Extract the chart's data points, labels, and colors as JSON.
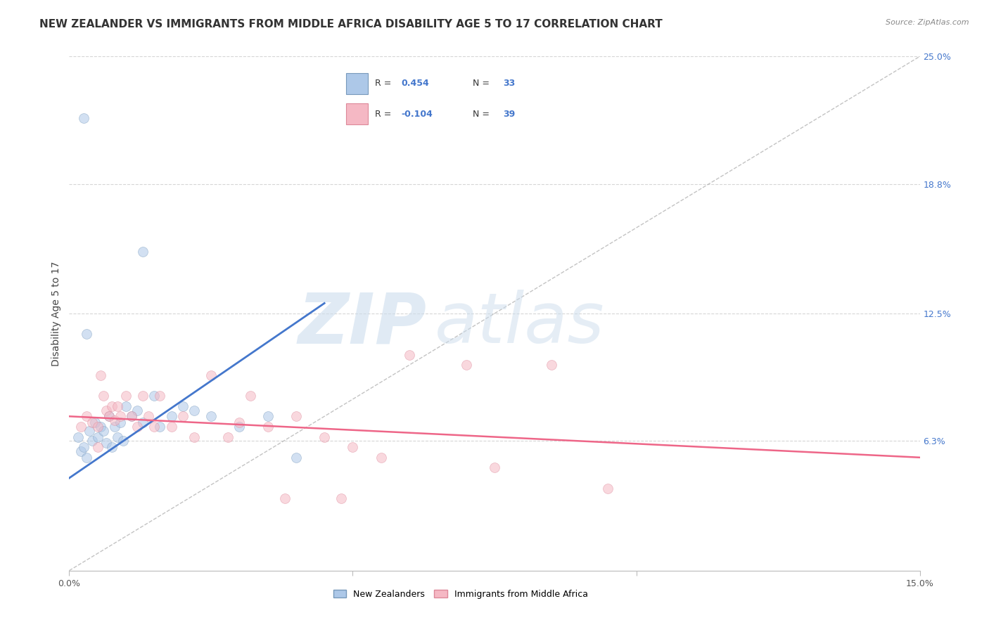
{
  "title": "NEW ZEALANDER VS IMMIGRANTS FROM MIDDLE AFRICA DISABILITY AGE 5 TO 17 CORRELATION CHART",
  "source": "Source: ZipAtlas.com",
  "ylabel": "Disability Age 5 to 17",
  "x_min": 0.0,
  "x_max": 15.0,
  "y_min": 0.0,
  "y_max": 25.0,
  "x_ticks": [
    0.0,
    5.0,
    10.0,
    15.0
  ],
  "x_tick_labels": [
    "0.0%",
    "",
    "",
    "15.0%"
  ],
  "y_ticks_right": [
    6.3,
    12.5,
    18.8,
    25.0
  ],
  "y_tick_labels_right": [
    "6.3%",
    "12.5%",
    "18.8%",
    "25.0%"
  ],
  "bottom_legend": [
    {
      "label": "New Zealanders",
      "color": "#adc8e8"
    },
    {
      "label": "Immigrants from Middle Africa",
      "color": "#f5b8c4"
    }
  ],
  "blue_scatter_x": [
    0.15,
    0.2,
    0.25,
    0.3,
    0.35,
    0.4,
    0.45,
    0.5,
    0.55,
    0.6,
    0.65,
    0.7,
    0.75,
    0.8,
    0.85,
    0.9,
    0.95,
    1.0,
    1.1,
    1.2,
    1.3,
    1.5,
    1.6,
    1.8,
    2.0,
    2.2,
    2.5,
    3.0,
    3.5,
    4.0,
    0.3,
    1.3,
    0.25
  ],
  "blue_scatter_y": [
    6.5,
    5.8,
    6.0,
    5.5,
    6.8,
    6.3,
    7.2,
    6.5,
    7.0,
    6.8,
    6.2,
    7.5,
    6.0,
    7.0,
    6.5,
    7.2,
    6.3,
    8.0,
    7.5,
    7.8,
    7.2,
    8.5,
    7.0,
    7.5,
    8.0,
    7.8,
    7.5,
    7.0,
    7.5,
    5.5,
    11.5,
    15.5,
    22.0
  ],
  "pink_scatter_x": [
    0.2,
    0.3,
    0.4,
    0.5,
    0.55,
    0.6,
    0.65,
    0.7,
    0.75,
    0.8,
    0.85,
    0.9,
    1.0,
    1.1,
    1.2,
    1.3,
    1.4,
    1.5,
    1.6,
    1.8,
    2.0,
    2.2,
    2.5,
    2.8,
    3.0,
    3.2,
    3.5,
    4.0,
    4.5,
    5.0,
    5.5,
    6.0,
    7.0,
    7.5,
    8.5,
    9.5,
    0.5,
    3.8,
    4.8
  ],
  "pink_scatter_y": [
    7.0,
    7.5,
    7.2,
    7.0,
    9.5,
    8.5,
    7.8,
    7.5,
    8.0,
    7.3,
    8.0,
    7.5,
    8.5,
    7.5,
    7.0,
    8.5,
    7.5,
    7.0,
    8.5,
    7.0,
    7.5,
    6.5,
    9.5,
    6.5,
    7.2,
    8.5,
    7.0,
    7.5,
    6.5,
    6.0,
    5.5,
    10.5,
    10.0,
    5.0,
    10.0,
    4.0,
    6.0,
    3.5,
    3.5
  ],
  "blue_line_x": [
    0.0,
    4.5
  ],
  "blue_line_y": [
    4.5,
    13.0
  ],
  "pink_line_x": [
    0.0,
    15.0
  ],
  "pink_line_y": [
    7.5,
    5.5
  ],
  "diag_line_x": [
    0.0,
    15.0
  ],
  "diag_line_y": [
    0.0,
    25.0
  ],
  "blue_line_color": "#4477cc",
  "pink_line_color": "#ee6688",
  "blue_dot_color": "#adc8e8",
  "pink_dot_color": "#f5b8c4",
  "blue_edge_color": "#7799bb",
  "pink_edge_color": "#dd8899",
  "diag_color": "#aaaaaa",
  "grid_color": "#cccccc",
  "background_color": "#ffffff",
  "watermark_color": "#ccdded",
  "title_fontsize": 11,
  "axis_label_fontsize": 10,
  "tick_fontsize": 9,
  "scatter_alpha": 0.55,
  "scatter_size": 100
}
